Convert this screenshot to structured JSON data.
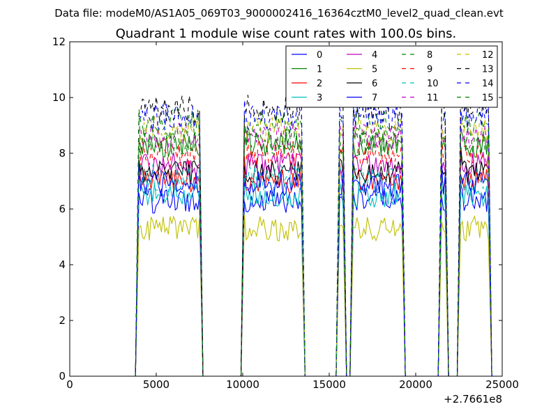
{
  "header": {
    "data_file": "Data file: modeM0/AS1A05_069T03_9000002416_16364cztM0_level2_quad_clean.evt"
  },
  "chart_data": {
    "type": "line",
    "title": "Quadrant 1 module wise count rates with 100.0s bins.",
    "xlabel": "",
    "ylabel": "",
    "xlim": [
      0,
      25000
    ],
    "ylim": [
      0,
      12
    ],
    "x_offset_label": "+2.7661e8",
    "xticks": [
      0,
      5000,
      10000,
      15000,
      20000,
      25000
    ],
    "yticks": [
      0,
      2,
      4,
      6,
      8,
      10,
      12
    ],
    "legend_position": "top-right",
    "legend_columns": 4,
    "segments": [
      {
        "start": 4000,
        "end": 7500
      },
      {
        "start": 10100,
        "end": 13400
      },
      {
        "start": 15600,
        "end": 15800
      },
      {
        "start": 16400,
        "end": 19200
      },
      {
        "start": 21500,
        "end": 21700
      },
      {
        "start": 22600,
        "end": 24200
      }
    ],
    "gaps_at_zero": [
      [
        7700,
        10000
      ],
      [
        13600,
        15400
      ],
      [
        16000,
        16200
      ],
      [
        19400,
        21400
      ],
      [
        21900,
        22400
      ]
    ],
    "series": [
      {
        "name": "0",
        "color": "#0000ff",
        "dash": false,
        "level": 6.3
      },
      {
        "name": "1",
        "color": "#008000",
        "dash": false,
        "level": 8.3
      },
      {
        "name": "2",
        "color": "#ff0000",
        "dash": false,
        "level": 7.0
      },
      {
        "name": "3",
        "color": "#00bfbf",
        "dash": false,
        "level": 6.5
      },
      {
        "name": "4",
        "color": "#bf00bf",
        "dash": false,
        "level": 7.6
      },
      {
        "name": "5",
        "color": "#bfbf00",
        "dash": false,
        "level": 5.3
      },
      {
        "name": "6",
        "color": "#000000",
        "dash": false,
        "level": 7.3
      },
      {
        "name": "7",
        "color": "#0000ff",
        "dash": false,
        "level": 6.9
      },
      {
        "name": "8",
        "color": "#008000",
        "dash": true,
        "level": 9.1
      },
      {
        "name": "9",
        "color": "#ff0000",
        "dash": true,
        "level": 8.0
      },
      {
        "name": "10",
        "color": "#00bfbf",
        "dash": true,
        "level": 7.1
      },
      {
        "name": "11",
        "color": "#bf00bf",
        "dash": true,
        "level": 8.6
      },
      {
        "name": "12",
        "color": "#bfbf00",
        "dash": true,
        "level": 8.8
      },
      {
        "name": "13",
        "color": "#000000",
        "dash": true,
        "level": 9.6
      },
      {
        "name": "14",
        "color": "#0000ff",
        "dash": true,
        "level": 9.3
      },
      {
        "name": "15",
        "color": "#008000",
        "dash": true,
        "level": 8.4
      }
    ]
  }
}
